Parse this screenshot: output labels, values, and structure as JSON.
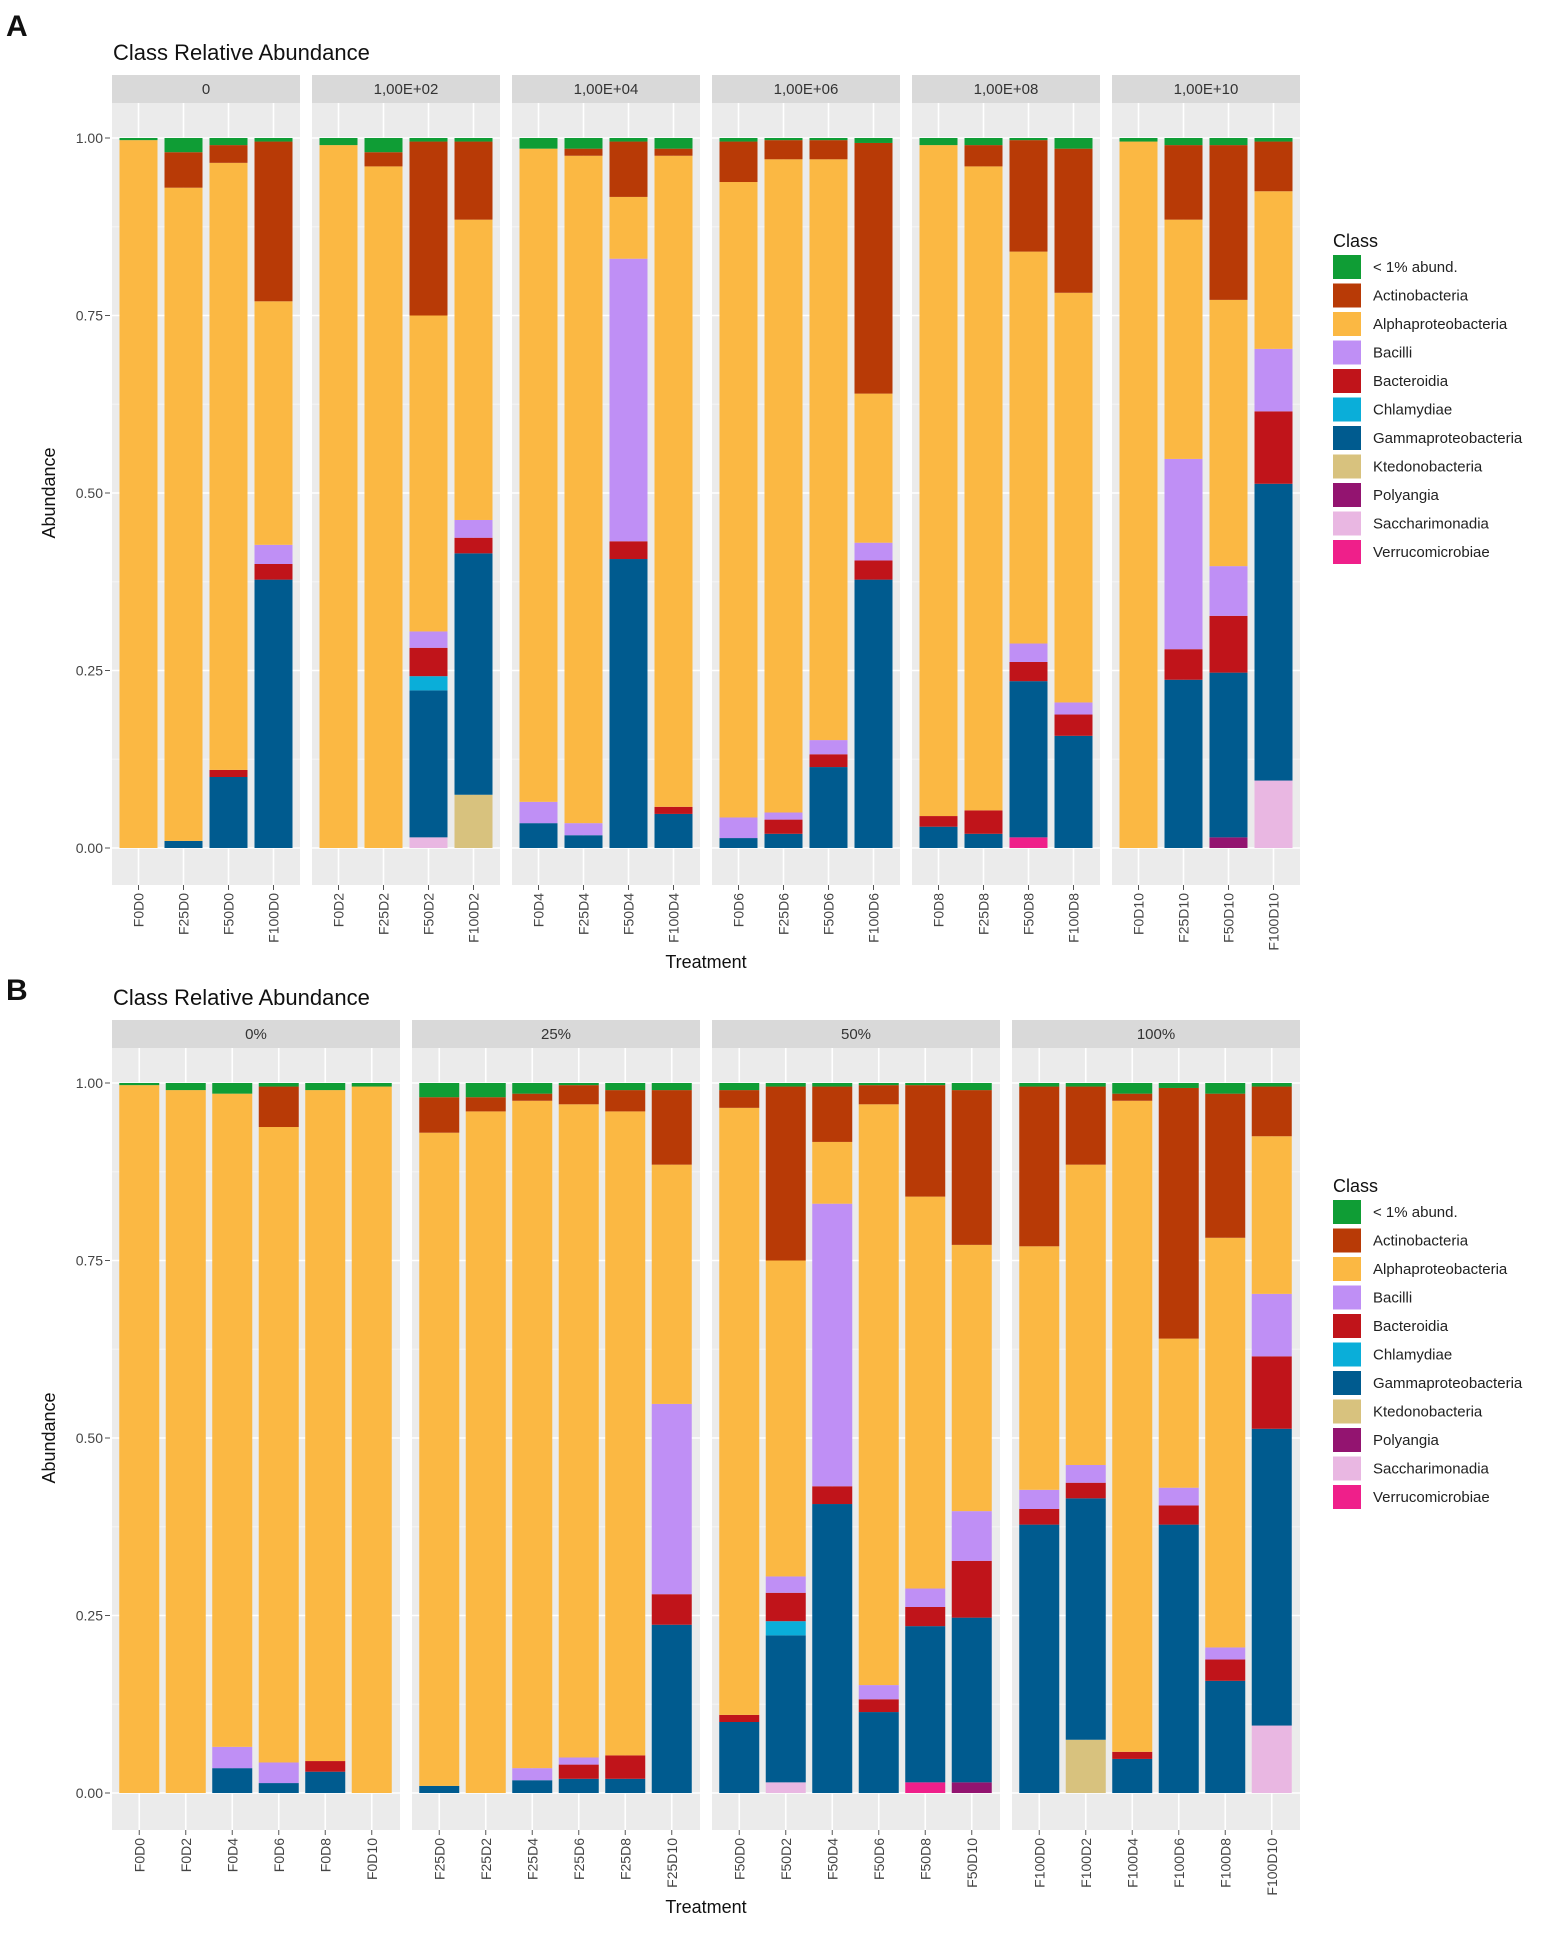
{
  "figure": {
    "panel_a_label": "A",
    "panel_b_label": "B"
  },
  "colors": {
    "< 1% abund.": "#0f9d35",
    "Actinobacteria": "#b83a06",
    "Alphaproteobacteria": "#fbb843",
    "Bacilli": "#bf8ff5",
    "Bacteroidia": "#c0141a",
    "Chlamydiae": "#0aaed9",
    "Gammaproteobacteria": "#005b8f",
    "Ktedonobacteria": "#d8c27e",
    "Polyangia": "#931470",
    "Saccharimonadia": "#e9b7e2",
    "Verrucomicrobiae": "#ef1f8a"
  },
  "icons": {
    "legend_key": "square-swatch"
  },
  "chart_data": [
    {
      "type": "bar",
      "stacked": true,
      "title": "Class Relative Abundance",
      "xlabel": "Treatment",
      "ylabel": "Abundance",
      "ylim": [
        0,
        1
      ],
      "yticks": [
        "0.00",
        "0.25",
        "0.50",
        "0.75",
        "1.00"
      ],
      "legend_title": "Class",
      "legend_position": "right",
      "classes": [
        "< 1% abund.",
        "Actinobacteria",
        "Alphaproteobacteria",
        "Bacilli",
        "Bacteroidia",
        "Chlamydiae",
        "Gammaproteobacteria",
        "Ktedonobacteria",
        "Polyangia",
        "Saccharimonadia",
        "Verrucomicrobiae"
      ],
      "stack_order": [
        "Verrucomicrobiae",
        "Saccharimonadia",
        "Polyangia",
        "Ktedonobacteria",
        "Gammaproteobacteria",
        "Chlamydiae",
        "Bacteroidia",
        "Bacilli",
        "Alphaproteobacteria",
        "Actinobacteria",
        "< 1% abund."
      ],
      "facets": [
        {
          "label": "0",
          "bars": [
            "F0D0",
            "F25D0",
            "F50D0",
            "F100D0"
          ]
        },
        {
          "label": "1,00E+02",
          "bars": [
            "F0D2",
            "F25D2",
            "F50D2",
            "F100D2"
          ]
        },
        {
          "label": "1,00E+04",
          "bars": [
            "F0D4",
            "F25D4",
            "F50D4",
            "F100D4"
          ]
        },
        {
          "label": "1,00E+06",
          "bars": [
            "F0D6",
            "F25D6",
            "F50D6",
            "F100D6"
          ]
        },
        {
          "label": "1,00E+08",
          "bars": [
            "F0D8",
            "F25D8",
            "F50D8",
            "F100D8"
          ]
        },
        {
          "label": "1,00E+10",
          "bars": [
            "F0D10",
            "F25D10",
            "F50D10",
            "F100D10"
          ]
        }
      ]
    },
    {
      "type": "bar",
      "stacked": true,
      "title": "Class Relative Abundance",
      "xlabel": "Treatment",
      "ylabel": "Abundance",
      "ylim": [
        0,
        1
      ],
      "yticks": [
        "0.00",
        "0.25",
        "0.50",
        "0.75",
        "1.00"
      ],
      "legend_title": "Class",
      "legend_position": "right",
      "classes": [
        "< 1% abund.",
        "Actinobacteria",
        "Alphaproteobacteria",
        "Bacilli",
        "Bacteroidia",
        "Chlamydiae",
        "Gammaproteobacteria",
        "Ktedonobacteria",
        "Polyangia",
        "Saccharimonadia",
        "Verrucomicrobiae"
      ],
      "stack_order": [
        "Verrucomicrobiae",
        "Saccharimonadia",
        "Polyangia",
        "Ktedonobacteria",
        "Gammaproteobacteria",
        "Chlamydiae",
        "Bacteroidia",
        "Bacilli",
        "Alphaproteobacteria",
        "Actinobacteria",
        "< 1% abund."
      ],
      "facets": [
        {
          "label": "0%",
          "bars": [
            "F0D0",
            "F0D2",
            "F0D4",
            "F0D6",
            "F0D8",
            "F0D10"
          ]
        },
        {
          "label": "25%",
          "bars": [
            "F25D0",
            "F25D2",
            "F25D4",
            "F25D6",
            "F25D8",
            "F25D10"
          ]
        },
        {
          "label": "50%",
          "bars": [
            "F50D0",
            "F50D2",
            "F50D4",
            "F50D6",
            "F50D8",
            "F50D10"
          ]
        },
        {
          "label": "100%",
          "bars": [
            "F100D0",
            "F100D2",
            "F100D4",
            "F100D6",
            "F100D8",
            "F100D10"
          ]
        }
      ]
    }
  ],
  "samples": {
    "F0D0": {
      "Alphaproteobacteria": 0.997,
      "< 1% abund.": 0.003
    },
    "F25D0": {
      "Gammaproteobacteria": 0.01,
      "Alphaproteobacteria": 0.92,
      "Actinobacteria": 0.05,
      "< 1% abund.": 0.02
    },
    "F50D0": {
      "Gammaproteobacteria": 0.1,
      "Bacteroidia": 0.01,
      "Alphaproteobacteria": 0.855,
      "Actinobacteria": 0.025,
      "< 1% abund.": 0.01
    },
    "F100D0": {
      "Gammaproteobacteria": 0.378,
      "Bacteroidia": 0.022,
      "Bacilli": 0.027,
      "Alphaproteobacteria": 0.343,
      "Actinobacteria": 0.225,
      "< 1% abund.": 0.005
    },
    "F0D2": {
      "Alphaproteobacteria": 0.99,
      "< 1% abund.": 0.01
    },
    "F25D2": {
      "Alphaproteobacteria": 0.96,
      "Actinobacteria": 0.02,
      "< 1% abund.": 0.02
    },
    "F50D2": {
      "Saccharimonadia": 0.015,
      "Gammaproteobacteria": 0.207,
      "Chlamydiae": 0.02,
      "Bacteroidia": 0.04,
      "Bacilli": 0.023,
      "Alphaproteobacteria": 0.445,
      "Actinobacteria": 0.245,
      "< 1% abund.": 0.005
    },
    "F100D2": {
      "Ktedonobacteria": 0.075,
      "Gammaproteobacteria": 0.34,
      "Bacteroidia": 0.022,
      "Bacilli": 0.025,
      "Alphaproteobacteria": 0.423,
      "Actinobacteria": 0.11,
      "< 1% abund.": 0.005
    },
    "F0D4": {
      "Gammaproteobacteria": 0.035,
      "Bacilli": 0.03,
      "Alphaproteobacteria": 0.92,
      "< 1% abund.": 0.015
    },
    "F25D4": {
      "Gammaproteobacteria": 0.018,
      "Bacilli": 0.017,
      "Alphaproteobacteria": 0.94,
      "Actinobacteria": 0.01,
      "< 1% abund.": 0.015
    },
    "F50D4": {
      "Gammaproteobacteria": 0.407,
      "Bacteroidia": 0.025,
      "Bacilli": 0.398,
      "Alphaproteobacteria": 0.087,
      "Actinobacteria": 0.078,
      "< 1% abund.": 0.005
    },
    "F100D4": {
      "Gammaproteobacteria": 0.048,
      "Bacteroidia": 0.01,
      "Alphaproteobacteria": 0.917,
      "Actinobacteria": 0.01,
      "< 1% abund.": 0.015
    },
    "F0D6": {
      "Gammaproteobacteria": 0.014,
      "Bacilli": 0.029,
      "Alphaproteobacteria": 0.895,
      "Actinobacteria": 0.057,
      "< 1% abund.": 0.005
    },
    "F25D6": {
      "Gammaproteobacteria": 0.02,
      "Bacteroidia": 0.02,
      "Bacilli": 0.01,
      "Alphaproteobacteria": 0.92,
      "Actinobacteria": 0.027,
      "< 1% abund.": 0.003
    },
    "F50D6": {
      "Gammaproteobacteria": 0.114,
      "Bacteroidia": 0.018,
      "Bacilli": 0.02,
      "Alphaproteobacteria": 0.818,
      "Actinobacteria": 0.027,
      "< 1% abund.": 0.003
    },
    "F100D6": {
      "Gammaproteobacteria": 0.378,
      "Bacteroidia": 0.027,
      "Bacilli": 0.025,
      "Alphaproteobacteria": 0.21,
      "Actinobacteria": 0.353,
      "< 1% abund.": 0.007
    },
    "F0D8": {
      "Gammaproteobacteria": 0.03,
      "Bacteroidia": 0.015,
      "Alphaproteobacteria": 0.945,
      "< 1% abund.": 0.01
    },
    "F25D8": {
      "Gammaproteobacteria": 0.02,
      "Bacteroidia": 0.033,
      "Alphaproteobacteria": 0.907,
      "Actinobacteria": 0.03,
      "< 1% abund.": 0.01
    },
    "F50D8": {
      "Verrucomicrobiae": 0.015,
      "Gammaproteobacteria": 0.22,
      "Bacteroidia": 0.027,
      "Bacilli": 0.026,
      "Alphaproteobacteria": 0.552,
      "Actinobacteria": 0.157,
      "< 1% abund.": 0.003
    },
    "F100D8": {
      "Gammaproteobacteria": 0.158,
      "Bacteroidia": 0.03,
      "Bacilli": 0.017,
      "Alphaproteobacteria": 0.577,
      "Actinobacteria": 0.203,
      "< 1% abund.": 0.015
    },
    "F0D10": {
      "Alphaproteobacteria": 0.995,
      "< 1% abund.": 0.005
    },
    "F25D10": {
      "Gammaproteobacteria": 0.237,
      "Bacteroidia": 0.043,
      "Bacilli": 0.268,
      "Alphaproteobacteria": 0.337,
      "Actinobacteria": 0.105,
      "< 1% abund.": 0.01
    },
    "F50D10": {
      "Polyangia": 0.015,
      "Gammaproteobacteria": 0.232,
      "Bacteroidia": 0.08,
      "Bacilli": 0.07,
      "Alphaproteobacteria": 0.375,
      "Actinobacteria": 0.218,
      "< 1% abund.": 0.01
    },
    "F100D10": {
      "Saccharimonadia": 0.095,
      "Gammaproteobacteria": 0.418,
      "Bacteroidia": 0.102,
      "Bacilli": 0.088,
      "Alphaproteobacteria": 0.222,
      "Actinobacteria": 0.07,
      "< 1% abund.": 0.005
    }
  }
}
